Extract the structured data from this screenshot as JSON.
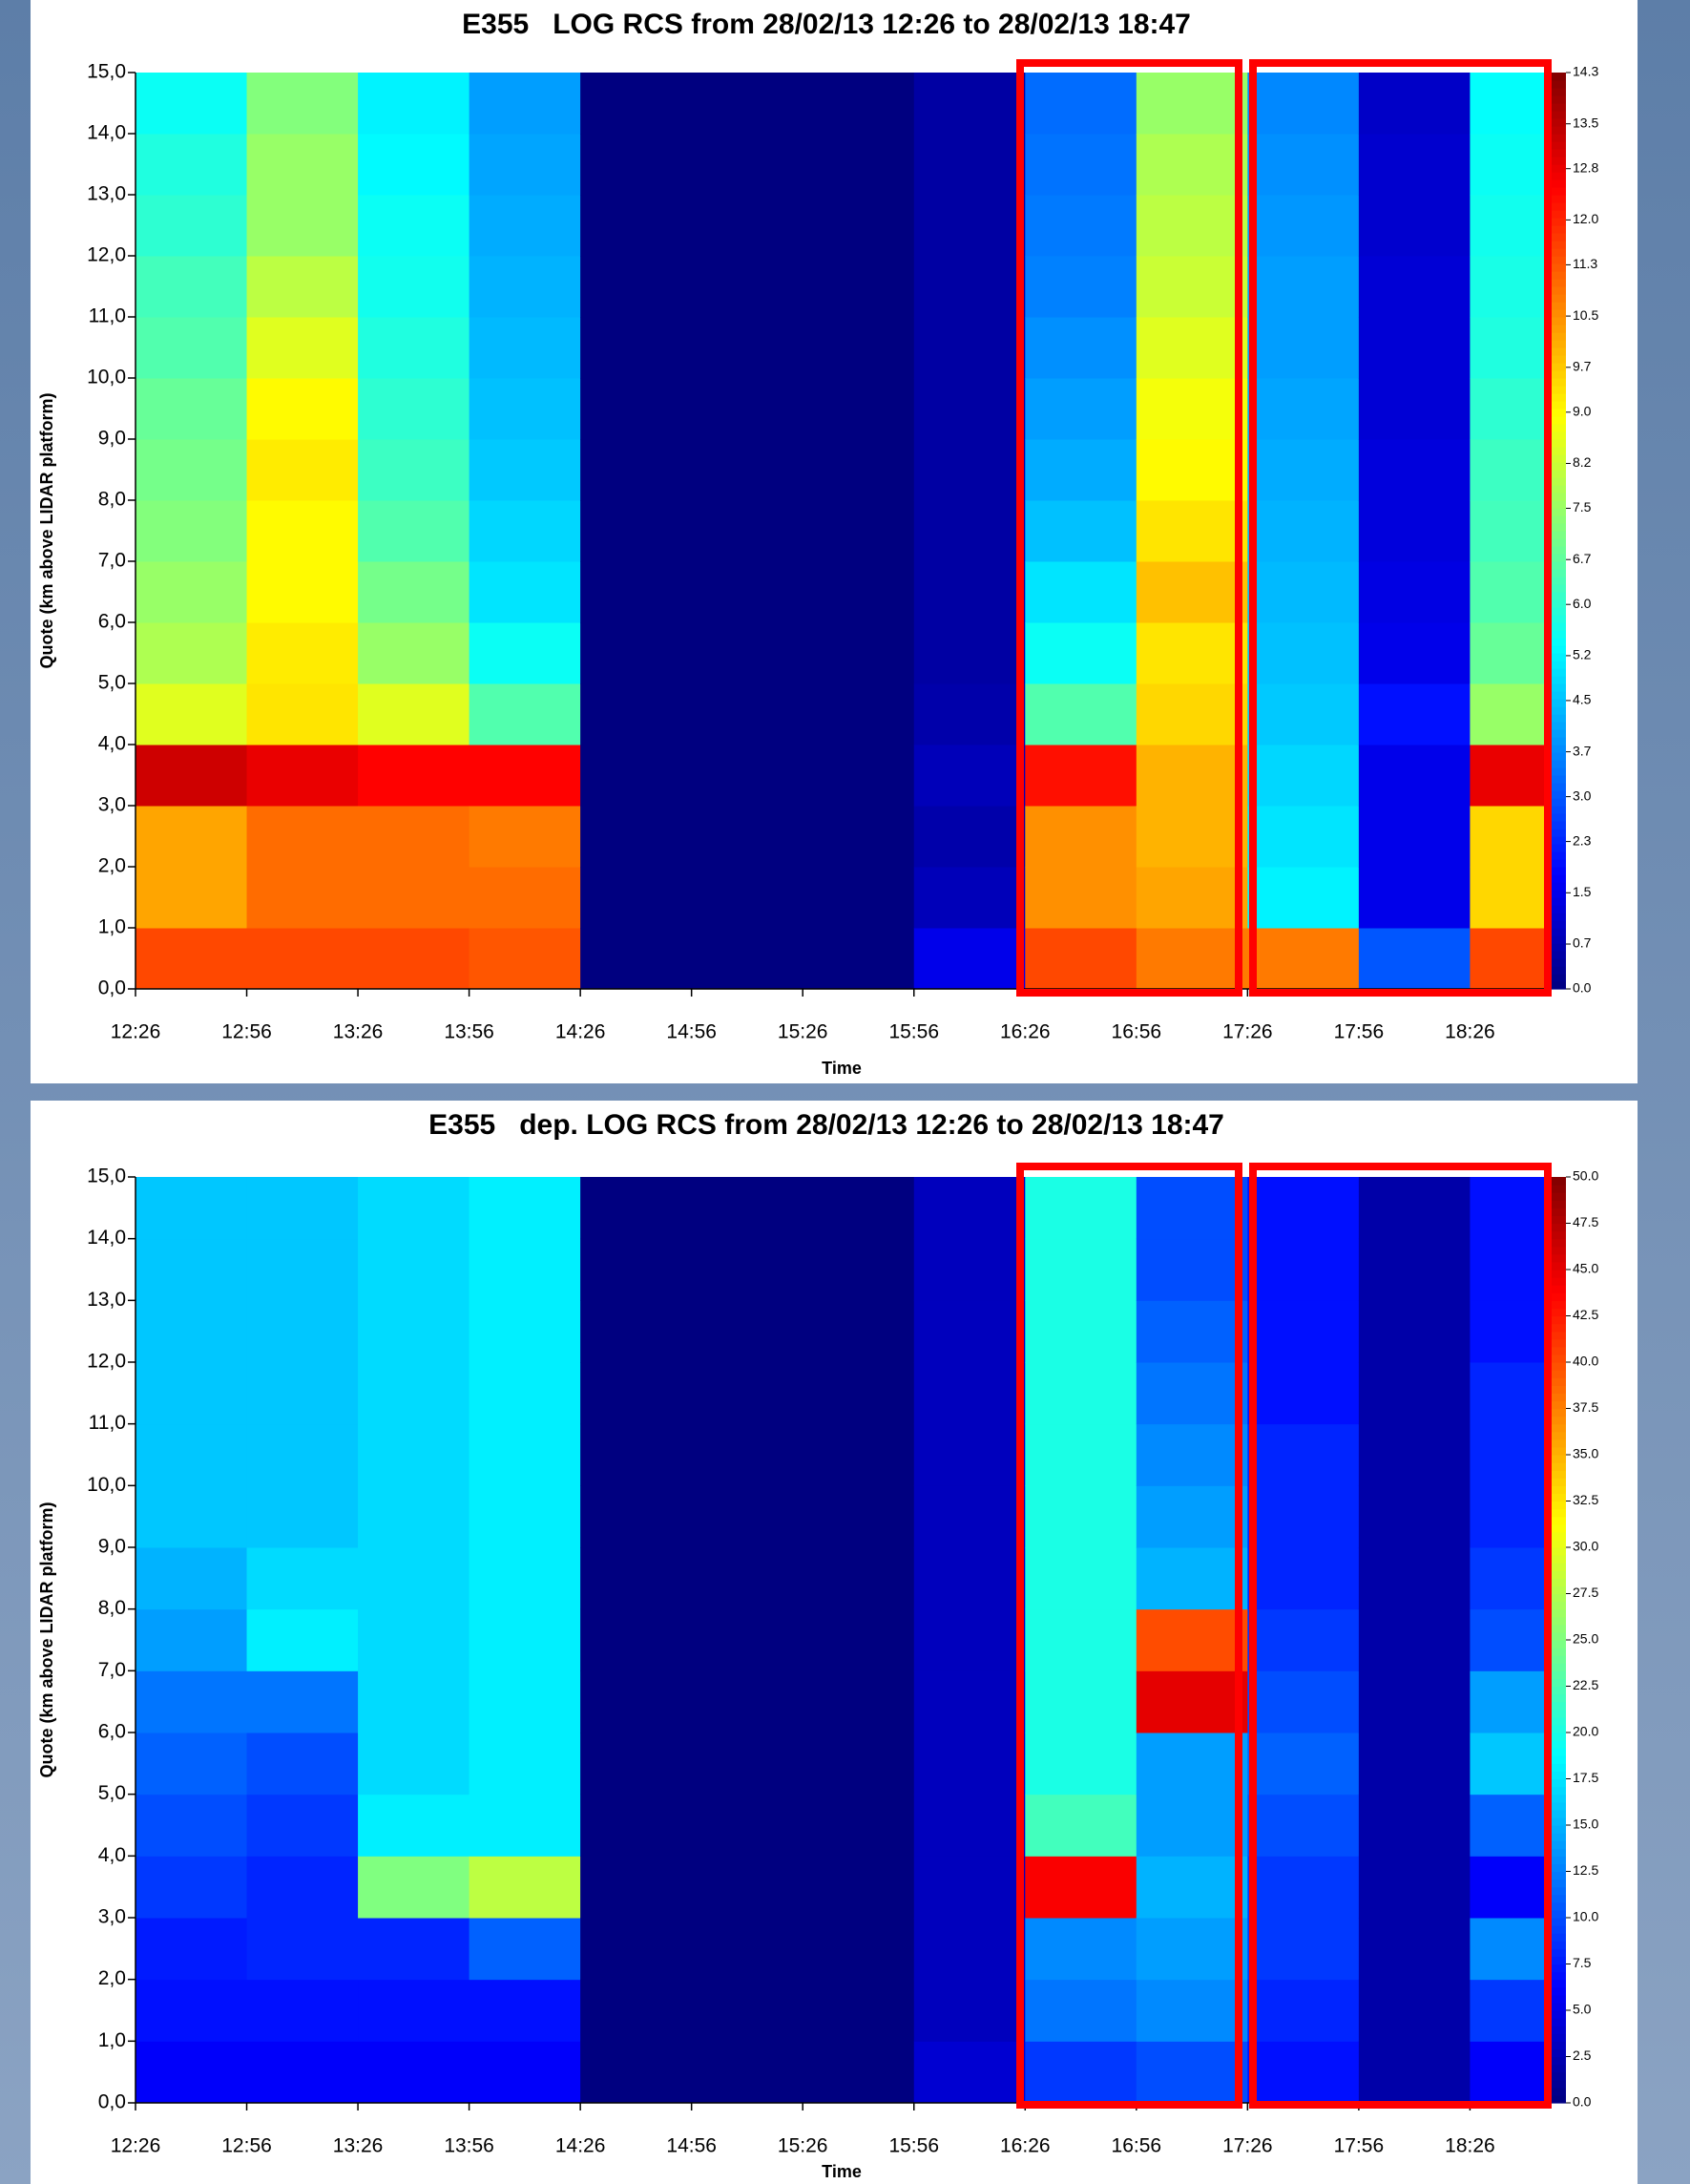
{
  "chart_data": [
    {
      "type": "heatmap",
      "title": "E355   LOG RCS from 28/02/13 12:26 to 28/02/13 18:47",
      "xlabel": "Time",
      "ylabel": "Quote (km above LIDAR platform)",
      "colormap": "jet",
      "xlim": [
        "12:26",
        "18:47"
      ],
      "xticks": [
        "12:26",
        "12:56",
        "13:26",
        "13:56",
        "14:26",
        "14:56",
        "15:26",
        "15:56",
        "16:26",
        "16:56",
        "17:26",
        "17:56",
        "18:26"
      ],
      "ylim": [
        0,
        15
      ],
      "yticks": [
        {
          "value": 0,
          "label": "0,0"
        },
        {
          "value": 1,
          "label": "1,0"
        },
        {
          "value": 2,
          "label": "2,0"
        },
        {
          "value": 3,
          "label": "3,0"
        },
        {
          "value": 4,
          "label": "4,0"
        },
        {
          "value": 5,
          "label": "5,0"
        },
        {
          "value": 6,
          "label": "6,0"
        },
        {
          "value": 7,
          "label": "7,0"
        },
        {
          "value": 8,
          "label": "8,0"
        },
        {
          "value": 9,
          "label": "9,0"
        },
        {
          "value": 10,
          "label": "10,0"
        },
        {
          "value": 11,
          "label": "11,0"
        },
        {
          "value": 12,
          "label": "12,0"
        },
        {
          "value": 13,
          "label": "13,0"
        },
        {
          "value": 14,
          "label": "14,0"
        },
        {
          "value": 15,
          "label": "15,0"
        }
      ],
      "x_bins": [
        "12:26",
        "12:56",
        "13:26",
        "13:56",
        "14:26",
        "14:56",
        "15:26",
        "15:56",
        "16:26",
        "16:56",
        "17:26",
        "17:56",
        "18:26",
        "18:47"
      ],
      "y_bins": [
        0,
        1,
        2,
        3,
        4,
        5,
        6,
        7,
        8,
        9,
        10,
        11,
        12,
        13,
        14,
        15
      ],
      "zlim": [
        0,
        14.3
      ],
      "zticks": [
        {
          "value": 0,
          "label": "0.0"
        },
        0.7,
        1.5,
        2.3,
        {
          "value": 3,
          "label": "3.0"
        },
        3.7,
        4.5,
        5.2,
        {
          "value": 6,
          "label": "6.0"
        },
        6.7,
        7.5,
        8.2,
        {
          "value": 9,
          "label": "9.0"
        },
        9.7,
        10.5,
        11.3,
        {
          "value": 12,
          "label": "12.0"
        },
        12.8,
        13.5,
        14.3
      ],
      "z": [
        [
          11.5,
          10.2,
          10.2,
          13.2,
          8.5,
          7.8,
          7.5,
          7.2,
          7,
          6.8,
          6.5,
          6.3,
          6,
          5.8,
          5.5
        ],
        [
          11.5,
          11,
          11,
          12.8,
          9.3,
          9.2,
          9,
          9,
          9.2,
          9,
          8.5,
          8,
          7.5,
          7.5,
          7.2
        ],
        [
          11.5,
          11,
          11,
          12.5,
          8.5,
          7.5,
          7,
          6.5,
          6.2,
          6,
          5.8,
          5.6,
          5.5,
          5.3,
          5.2
        ],
        [
          11.3,
          11,
          10.8,
          12.5,
          6.5,
          5.5,
          5,
          4.8,
          4.6,
          4.5,
          4.4,
          4.3,
          4.2,
          4.1,
          4
        ],
        [
          0,
          0,
          0,
          0,
          0,
          0,
          0,
          0,
          0,
          0,
          0,
          0,
          0,
          0,
          0
        ],
        [
          0,
          0,
          0,
          0,
          0,
          0,
          0,
          0,
          0,
          0,
          0,
          0,
          0,
          0,
          0
        ],
        [
          0,
          0,
          0,
          0,
          0,
          0,
          0,
          0,
          0,
          0,
          0,
          0,
          0,
          0,
          0
        ],
        [
          1.5,
          0.8,
          0.6,
          0.8,
          0.6,
          0.5,
          0.5,
          0.5,
          0.5,
          0.5,
          0.5,
          0.5,
          0.5,
          0.5,
          0.5
        ],
        [
          11.5,
          10.5,
          10.5,
          12.3,
          6.5,
          5.5,
          5,
          4.5,
          4.2,
          4,
          3.8,
          3.6,
          3.5,
          3.4,
          3.3
        ],
        [
          10.8,
          10.2,
          10,
          10,
          9.5,
          9.3,
          9.8,
          9.3,
          9,
          8.8,
          8.5,
          8.2,
          8,
          7.8,
          7.5
        ],
        [
          10.8,
          5.2,
          5,
          4.8,
          4.6,
          4.5,
          4.4,
          4.3,
          4.2,
          4.1,
          4,
          4,
          3.9,
          3.8,
          3.7
        ],
        [
          3,
          1.5,
          1.5,
          1.5,
          2,
          1.5,
          1.4,
          1.3,
          1.3,
          1.2,
          1.2,
          1.2,
          1.1,
          1.1,
          1
        ],
        [
          11.5,
          9.5,
          9.5,
          12.8,
          7.5,
          6.8,
          6.5,
          6.3,
          6.2,
          6,
          5.8,
          5.7,
          5.6,
          5.5,
          5.4
        ]
      ]
    },
    {
      "type": "heatmap",
      "title": "E355   dep. LOG RCS from 28/02/13 12:26 to 28/02/13 18:47",
      "xlabel": "Time",
      "ylabel": "Quote (km above LIDAR platform)",
      "colormap": "jet",
      "xlim": [
        "12:26",
        "18:47"
      ],
      "xticks": [
        "12:26",
        "12:56",
        "13:26",
        "13:56",
        "14:26",
        "14:56",
        "15:26",
        "15:56",
        "16:26",
        "16:56",
        "17:26",
        "17:56",
        "18:26"
      ],
      "ylim": [
        0,
        15
      ],
      "yticks": [
        {
          "value": 0,
          "label": "0,0"
        },
        {
          "value": 1,
          "label": "1,0"
        },
        {
          "value": 2,
          "label": "2,0"
        },
        {
          "value": 3,
          "label": "3,0"
        },
        {
          "value": 4,
          "label": "4,0"
        },
        {
          "value": 5,
          "label": "5,0"
        },
        {
          "value": 6,
          "label": "6,0"
        },
        {
          "value": 7,
          "label": "7,0"
        },
        {
          "value": 8,
          "label": "8,0"
        },
        {
          "value": 9,
          "label": "9,0"
        },
        {
          "value": 10,
          "label": "10,0"
        },
        {
          "value": 11,
          "label": "11,0"
        },
        {
          "value": 12,
          "label": "12,0"
        },
        {
          "value": 13,
          "label": "13,0"
        },
        {
          "value": 14,
          "label": "14,0"
        },
        {
          "value": 15,
          "label": "15,0"
        }
      ],
      "x_bins": [
        "12:26",
        "12:56",
        "13:26",
        "13:56",
        "14:26",
        "14:56",
        "15:26",
        "15:56",
        "16:26",
        "16:56",
        "17:26",
        "17:56",
        "18:26",
        "18:47"
      ],
      "y_bins": [
        0,
        1,
        2,
        3,
        4,
        5,
        6,
        7,
        8,
        9,
        10,
        11,
        12,
        13,
        14,
        15
      ],
      "zlim": [
        0,
        50
      ],
      "zticks": [
        {
          "value": 0,
          "label": "0.0"
        },
        2.5,
        {
          "value": 5,
          "label": "5.0"
        },
        7.5,
        {
          "value": 10,
          "label": "10.0"
        },
        12.5,
        {
          "value": 15,
          "label": "15.0"
        },
        17.5,
        {
          "value": 20,
          "label": "20.0"
        },
        22.5,
        {
          "value": 25,
          "label": "25.0"
        },
        27.5,
        {
          "value": 30,
          "label": "30.0"
        },
        32.5,
        {
          "value": 35,
          "label": "35.0"
        },
        37.5,
        {
          "value": 40,
          "label": "40.0"
        },
        42.5,
        {
          "value": 45,
          "label": "45.0"
        },
        47.5,
        {
          "value": 50,
          "label": "50.0"
        }
      ],
      "z": [
        [
          6,
          7,
          7.5,
          9,
          10,
          11,
          12,
          14,
          15,
          16,
          16,
          16,
          16,
          16,
          16
        ],
        [
          6,
          7,
          8,
          8,
          9,
          10,
          12,
          18,
          17,
          16,
          16,
          16,
          16,
          16,
          16
        ],
        [
          6,
          7,
          8,
          25,
          18,
          17,
          17,
          17,
          17,
          17,
          17,
          17,
          17,
          17,
          17
        ],
        [
          6,
          7,
          11,
          28,
          18,
          18,
          18,
          18,
          18,
          18,
          18,
          18,
          18,
          18,
          18
        ],
        [
          0,
          0,
          0,
          0,
          0,
          0,
          0,
          0,
          0,
          0,
          0,
          0,
          0,
          0,
          0
        ],
        [
          0,
          0,
          0,
          0,
          0,
          0,
          0,
          0,
          0,
          0,
          0,
          0,
          0,
          0,
          0
        ],
        [
          0,
          0,
          0,
          0,
          0,
          0,
          0,
          0,
          0,
          0,
          0,
          0,
          0,
          0,
          0
        ],
        [
          4,
          3,
          3,
          3,
          3,
          3,
          3,
          3,
          3,
          3,
          3,
          3,
          3,
          3,
          3
        ],
        [
          9,
          12,
          13,
          44,
          22,
          20,
          20,
          20,
          20,
          20,
          20,
          20,
          20,
          20,
          20
        ],
        [
          10,
          13,
          14,
          15,
          14,
          14,
          45,
          40,
          15,
          14,
          13,
          12,
          11,
          10,
          10
        ],
        [
          7,
          8,
          9,
          9,
          10,
          11,
          10,
          9,
          8,
          8,
          8,
          7,
          7,
          7,
          7
        ],
        [
          2,
          2,
          2,
          2,
          2,
          2,
          2,
          2,
          2,
          2,
          2,
          2,
          2,
          2,
          2
        ],
        [
          6,
          9,
          13,
          6,
          11,
          16,
          14,
          10,
          9,
          8,
          8,
          8,
          7,
          7,
          7
        ]
      ]
    }
  ]
}
